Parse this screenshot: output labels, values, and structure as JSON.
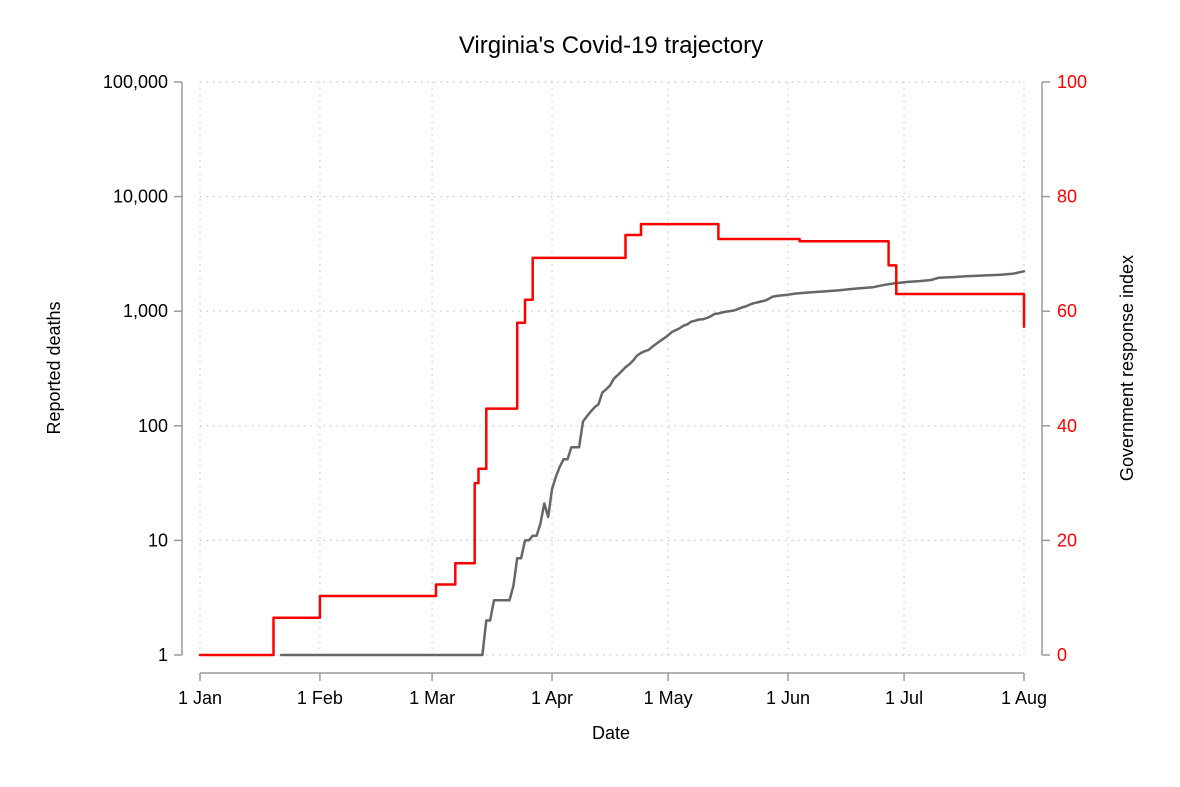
{
  "chart_data": {
    "type": "line",
    "title": "Virginia's Covid-19 trajectory",
    "xlabel": "Date",
    "ylabel_left": "Reported deaths",
    "ylabel_right": "Government response index",
    "x_range": [
      "2020-01-01",
      "2020-08-01"
    ],
    "x_ticks": [
      {
        "date": "2020-01-01",
        "label": "1 Jan"
      },
      {
        "date": "2020-02-01",
        "label": "1 Feb"
      },
      {
        "date": "2020-03-01",
        "label": "1 Mar"
      },
      {
        "date": "2020-04-01",
        "label": "1 Apr"
      },
      {
        "date": "2020-05-01",
        "label": "1 May"
      },
      {
        "date": "2020-06-01",
        "label": "1 Jun"
      },
      {
        "date": "2020-07-01",
        "label": "1 Jul"
      },
      {
        "date": "2020-08-01",
        "label": "1 Aug"
      }
    ],
    "y_left": {
      "scale": "log",
      "range": [
        1,
        100000
      ],
      "ticks": [
        {
          "value": 1,
          "label": "1"
        },
        {
          "value": 10,
          "label": "10"
        },
        {
          "value": 100,
          "label": "100"
        },
        {
          "value": 1000,
          "label": "1,000"
        },
        {
          "value": 10000,
          "label": "10,000"
        },
        {
          "value": 100000,
          "label": "100,000"
        }
      ]
    },
    "y_right": {
      "scale": "linear",
      "range": [
        0,
        100
      ],
      "ticks": [
        {
          "value": 0,
          "label": "0"
        },
        {
          "value": 20,
          "label": "20"
        },
        {
          "value": 40,
          "label": "40"
        },
        {
          "value": 60,
          "label": "60"
        },
        {
          "value": 80,
          "label": "80"
        },
        {
          "value": 100,
          "label": "100"
        }
      ]
    },
    "grid": true,
    "series": [
      {
        "axis": "left",
        "color": "#666666",
        "step": false,
        "points": [
          [
            "2020-01-22",
            1
          ],
          [
            "2020-03-14",
            1
          ],
          [
            "2020-03-15",
            2
          ],
          [
            "2020-03-16",
            2
          ],
          [
            "2020-03-17",
            3
          ],
          [
            "2020-03-21",
            3
          ],
          [
            "2020-03-22",
            4
          ],
          [
            "2020-03-23",
            7
          ],
          [
            "2020-03-24",
            7
          ],
          [
            "2020-03-25",
            10
          ],
          [
            "2020-03-26",
            10
          ],
          [
            "2020-03-27",
            11
          ],
          [
            "2020-03-28",
            11
          ],
          [
            "2020-03-29",
            14
          ],
          [
            "2020-03-30",
            21
          ],
          [
            "2020-03-31",
            16
          ],
          [
            "2020-04-01",
            28
          ],
          [
            "2020-04-02",
            36
          ],
          [
            "2020-04-03",
            44
          ],
          [
            "2020-04-04",
            51
          ],
          [
            "2020-04-05",
            51
          ],
          [
            "2020-04-06",
            65
          ],
          [
            "2020-04-08",
            65
          ],
          [
            "2020-04-09",
            109
          ],
          [
            "2020-04-10",
            121
          ],
          [
            "2020-04-11",
            133
          ],
          [
            "2020-04-12",
            145
          ],
          [
            "2020-04-13",
            154
          ],
          [
            "2020-04-14",
            195
          ],
          [
            "2020-04-15",
            208
          ],
          [
            "2020-04-16",
            225
          ],
          [
            "2020-04-17",
            258
          ],
          [
            "2020-04-18",
            277
          ],
          [
            "2020-04-19",
            300
          ],
          [
            "2020-04-20",
            324
          ],
          [
            "2020-04-21",
            344
          ],
          [
            "2020-04-22",
            372
          ],
          [
            "2020-04-23",
            410
          ],
          [
            "2020-04-24",
            433
          ],
          [
            "2020-04-25",
            448
          ],
          [
            "2020-04-26",
            460
          ],
          [
            "2020-04-27",
            492
          ],
          [
            "2020-04-28",
            522
          ],
          [
            "2020-04-29",
            552
          ],
          [
            "2020-04-30",
            581
          ],
          [
            "2020-05-01",
            616
          ],
          [
            "2020-05-02",
            660
          ],
          [
            "2020-05-03",
            684
          ],
          [
            "2020-05-04",
            711
          ],
          [
            "2020-05-05",
            747
          ],
          [
            "2020-05-06",
            769
          ],
          [
            "2020-05-07",
            812
          ],
          [
            "2020-05-08",
            827
          ],
          [
            "2020-05-09",
            846
          ],
          [
            "2020-05-10",
            850
          ],
          [
            "2020-05-11",
            872
          ],
          [
            "2020-05-12",
            900
          ],
          [
            "2020-05-13",
            947
          ],
          [
            "2020-05-14",
            955
          ],
          [
            "2020-05-15",
            977
          ],
          [
            "2020-05-16",
            992
          ],
          [
            "2020-05-17",
            1002
          ],
          [
            "2020-05-18",
            1014
          ],
          [
            "2020-05-19",
            1041
          ],
          [
            "2020-05-20",
            1075
          ],
          [
            "2020-05-21",
            1099
          ],
          [
            "2020-05-22",
            1136
          ],
          [
            "2020-05-23",
            1171
          ],
          [
            "2020-05-24",
            1191
          ],
          [
            "2020-05-25",
            1214
          ],
          [
            "2020-05-26",
            1236
          ],
          [
            "2020-05-27",
            1281
          ],
          [
            "2020-05-28",
            1338
          ],
          [
            "2020-05-29",
            1358
          ],
          [
            "2020-05-30",
            1370
          ],
          [
            "2020-06-01",
            1392
          ],
          [
            "2020-06-03",
            1428
          ],
          [
            "2020-06-05",
            1445
          ],
          [
            "2020-06-08",
            1470
          ],
          [
            "2020-06-11",
            1496
          ],
          [
            "2020-06-14",
            1520
          ],
          [
            "2020-06-17",
            1560
          ],
          [
            "2020-06-20",
            1590
          ],
          [
            "2020-06-23",
            1620
          ],
          [
            "2020-06-26",
            1700
          ],
          [
            "2020-06-29",
            1760
          ],
          [
            "2020-07-02",
            1800
          ],
          [
            "2020-07-05",
            1830
          ],
          [
            "2020-07-08",
            1870
          ],
          [
            "2020-07-10",
            1960
          ],
          [
            "2020-07-14",
            1990
          ],
          [
            "2020-07-17",
            2020
          ],
          [
            "2020-07-20",
            2040
          ],
          [
            "2020-07-23",
            2060
          ],
          [
            "2020-07-26",
            2080
          ],
          [
            "2020-07-29",
            2120
          ],
          [
            "2020-08-01",
            2230
          ]
        ]
      },
      {
        "axis": "right",
        "color": "#ff0000",
        "step": true,
        "points": [
          [
            "2020-01-01",
            0
          ],
          [
            "2020-01-20",
            6.5
          ],
          [
            "2020-02-01",
            10.3
          ],
          [
            "2020-03-02",
            12.3
          ],
          [
            "2020-03-07",
            16
          ],
          [
            "2020-03-12",
            30
          ],
          [
            "2020-03-13",
            32.5
          ],
          [
            "2020-03-15",
            43
          ],
          [
            "2020-03-23",
            58
          ],
          [
            "2020-03-25",
            62
          ],
          [
            "2020-03-27",
            69.3
          ],
          [
            "2020-04-20",
            73.3
          ],
          [
            "2020-04-24",
            75.2
          ],
          [
            "2020-05-14",
            72.6
          ],
          [
            "2020-06-04",
            72.2
          ],
          [
            "2020-06-27",
            68
          ],
          [
            "2020-06-29",
            63
          ],
          [
            "2020-07-31",
            63
          ],
          [
            "2020-08-01",
            57.3
          ]
        ]
      }
    ]
  }
}
